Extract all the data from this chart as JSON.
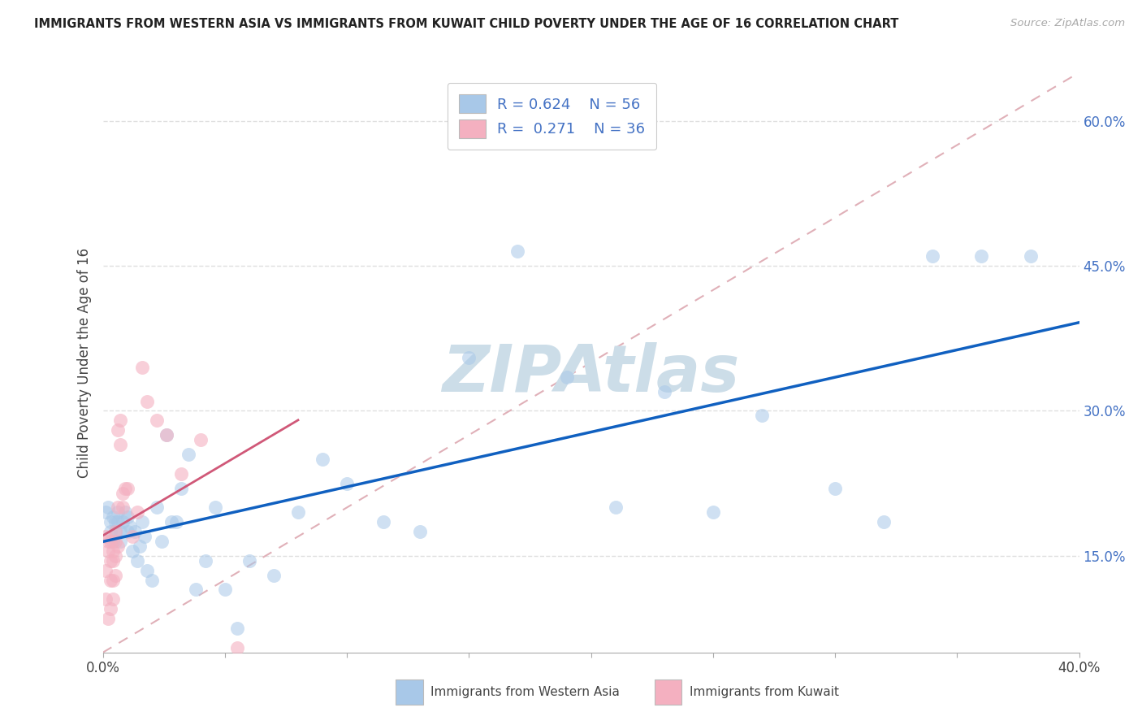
{
  "title": "IMMIGRANTS FROM WESTERN ASIA VS IMMIGRANTS FROM KUWAIT CHILD POVERTY UNDER THE AGE OF 16 CORRELATION CHART",
  "source": "Source: ZipAtlas.com",
  "xlabel_blue": "Immigrants from Western Asia",
  "xlabel_pink": "Immigrants from Kuwait",
  "ylabel": "Child Poverty Under the Age of 16",
  "xlim": [
    0.0,
    0.4
  ],
  "ylim": [
    0.05,
    0.65
  ],
  "R_blue": 0.624,
  "N_blue": 56,
  "R_pink": 0.271,
  "N_pink": 36,
  "blue_fill": "#a8c8e8",
  "pink_fill": "#f4b0c0",
  "blue_line": "#1060c0",
  "pink_line": "#d05878",
  "ref_line_color": "#e0b0b8",
  "watermark": "ZIPAtlas",
  "watermark_color": "#ccdde8",
  "grid_color": "#e0e0e0",
  "blue_scatter_x": [
    0.001,
    0.002,
    0.003,
    0.003,
    0.004,
    0.004,
    0.005,
    0.005,
    0.006,
    0.006,
    0.007,
    0.007,
    0.008,
    0.009,
    0.01,
    0.01,
    0.011,
    0.012,
    0.013,
    0.014,
    0.015,
    0.016,
    0.017,
    0.018,
    0.02,
    0.022,
    0.024,
    0.026,
    0.028,
    0.03,
    0.032,
    0.035,
    0.038,
    0.042,
    0.046,
    0.05,
    0.055,
    0.06,
    0.07,
    0.08,
    0.09,
    0.1,
    0.115,
    0.13,
    0.15,
    0.17,
    0.19,
    0.21,
    0.23,
    0.25,
    0.27,
    0.3,
    0.32,
    0.34,
    0.36,
    0.38
  ],
  "blue_scatter_y": [
    0.195,
    0.2,
    0.185,
    0.175,
    0.19,
    0.165,
    0.185,
    0.175,
    0.195,
    0.185,
    0.175,
    0.165,
    0.185,
    0.195,
    0.19,
    0.175,
    0.18,
    0.155,
    0.175,
    0.145,
    0.16,
    0.185,
    0.17,
    0.135,
    0.125,
    0.2,
    0.165,
    0.275,
    0.185,
    0.185,
    0.22,
    0.255,
    0.115,
    0.145,
    0.2,
    0.115,
    0.075,
    0.145,
    0.13,
    0.195,
    0.25,
    0.225,
    0.185,
    0.175,
    0.355,
    0.465,
    0.335,
    0.2,
    0.32,
    0.195,
    0.295,
    0.22,
    0.185,
    0.46,
    0.46,
    0.46
  ],
  "pink_scatter_x": [
    0.001,
    0.001,
    0.001,
    0.002,
    0.002,
    0.002,
    0.003,
    0.003,
    0.003,
    0.003,
    0.004,
    0.004,
    0.004,
    0.004,
    0.005,
    0.005,
    0.005,
    0.005,
    0.006,
    0.006,
    0.006,
    0.007,
    0.007,
    0.008,
    0.008,
    0.009,
    0.01,
    0.012,
    0.014,
    0.016,
    0.018,
    0.022,
    0.026,
    0.032,
    0.04,
    0.055
  ],
  "pink_scatter_y": [
    0.135,
    0.17,
    0.105,
    0.165,
    0.155,
    0.085,
    0.165,
    0.145,
    0.125,
    0.095,
    0.155,
    0.145,
    0.125,
    0.105,
    0.175,
    0.165,
    0.15,
    0.13,
    0.16,
    0.28,
    0.2,
    0.29,
    0.265,
    0.2,
    0.215,
    0.22,
    0.22,
    0.17,
    0.195,
    0.345,
    0.31,
    0.29,
    0.275,
    0.235,
    0.27,
    0.055
  ]
}
